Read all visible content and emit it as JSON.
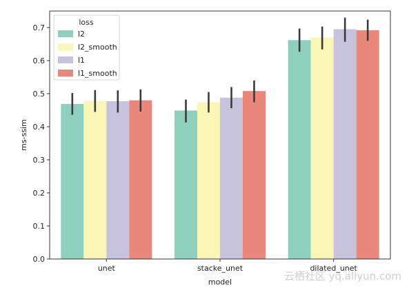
{
  "chart_data": {
    "type": "bar",
    "title": "",
    "xlabel": "model",
    "ylabel": "ms-ssim",
    "ylim": [
      0,
      0.75
    ],
    "yticks": [
      0.0,
      0.1,
      0.2,
      0.3,
      0.4,
      0.5,
      0.6,
      0.7
    ],
    "ytick_labels": [
      "0.0",
      "0.1",
      "0.2",
      "0.3",
      "0.4",
      "0.5",
      "0.6",
      "0.7"
    ],
    "categories": [
      "unet",
      "stacke_unet",
      "dilated_unet"
    ],
    "legend_title": "loss",
    "legend_position": "top-left",
    "grid": false,
    "series": [
      {
        "name": "l2",
        "color": "#8fcfbd",
        "values": [
          0.469,
          0.449,
          0.662
        ],
        "err_low": [
          0.436,
          0.413,
          0.627
        ],
        "err_high": [
          0.502,
          0.482,
          0.697
        ]
      },
      {
        "name": "l2_smooth",
        "color": "#f9f6b6",
        "values": [
          0.478,
          0.474,
          0.67
        ],
        "err_low": [
          0.445,
          0.443,
          0.634
        ],
        "err_high": [
          0.511,
          0.505,
          0.703
        ]
      },
      {
        "name": "l1",
        "color": "#c7c3dd",
        "values": [
          0.477,
          0.488,
          0.695
        ],
        "err_low": [
          0.443,
          0.456,
          0.657
        ],
        "err_high": [
          0.51,
          0.52,
          0.73
        ]
      },
      {
        "name": "l1_smooth",
        "color": "#e9877a",
        "values": [
          0.48,
          0.508,
          0.692
        ],
        "err_low": [
          0.446,
          0.474,
          0.66
        ],
        "err_high": [
          0.513,
          0.54,
          0.724
        ]
      }
    ]
  },
  "watermark": "云栖社区 yq.aliyun.com"
}
